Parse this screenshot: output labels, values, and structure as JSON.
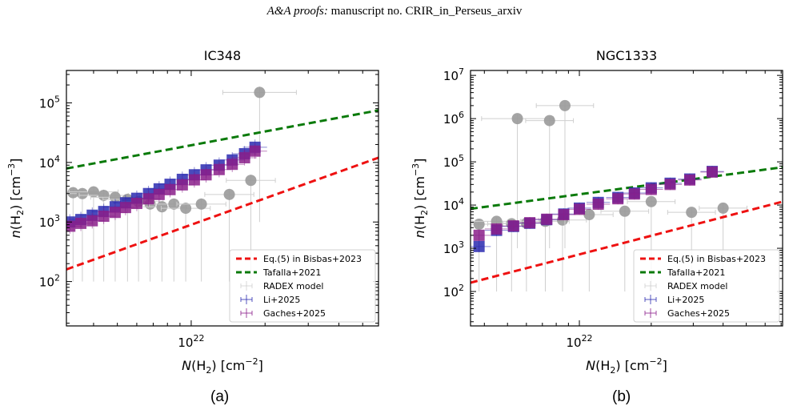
{
  "header": {
    "journal": "A&A proofs:",
    "rest": " manuscript no. CRIR_in_Perseus_arxiv"
  },
  "colors": {
    "red": "#ee1111",
    "green": "#0a7a0a",
    "radex": "#9a9a9a",
    "radex_err": "#cfcfcf",
    "li": "#2a2ab0",
    "gaches": "#8a1e8a"
  },
  "legend_items": [
    "Eq.(5) in Bisbas+2023",
    "Tafalla+2021",
    "RADEX model",
    "Li+2025",
    "Gaches+2025"
  ],
  "chart_data": [
    {
      "type": "scatter",
      "title": "IC348",
      "caption": "(a)",
      "xlabel": "N(H2) [cm−2]",
      "ylabel": "n(H2) [cm−3]",
      "xscale": "log",
      "yscale": "log",
      "xlim": [
        3.1e+21,
        5.8e+22
      ],
      "ylim": [
        18,
        350000.0
      ],
      "xticks": [
        {
          "v": 1e+22,
          "label": "10^22"
        }
      ],
      "yticks": [
        {
          "v": 100,
          "label": "10^2"
        },
        {
          "v": 1000,
          "label": "10^3"
        },
        {
          "v": 10000,
          "label": "10^4"
        },
        {
          "v": 100000,
          "label": "10^5"
        }
      ],
      "legend": "lower-right",
      "grid": false,
      "lines": [
        {
          "name": "Eq.(5) in Bisbas+2023",
          "color": "red",
          "x": [
            3.1e+21,
            5.8e+22
          ],
          "y": [
            160,
            12000
          ]
        },
        {
          "name": "Tafalla+2021",
          "color": "green",
          "x": [
            3.1e+21,
            5.8e+22
          ],
          "y": [
            7900,
            75000
          ]
        }
      ],
      "radex": [
        {
          "x": 3.3e+21,
          "y": 3100,
          "xe": 0.1,
          "ylo": 3000
        },
        {
          "x": 3.6e+21,
          "y": 3000,
          "xe": 0.1,
          "ylo": 2900
        },
        {
          "x": 4e+21,
          "y": 3200,
          "xe": 0.1,
          "ylo": 3100
        },
        {
          "x": 4.4e+21,
          "y": 2800,
          "xe": 0.1,
          "ylo": 2700
        },
        {
          "x": 4.9e+21,
          "y": 2600,
          "xe": 0.1,
          "ylo": 2500
        },
        {
          "x": 5.5e+21,
          "y": 2400,
          "xe": 0.1,
          "ylo": 2300
        },
        {
          "x": 6.1e+21,
          "y": 2200,
          "xe": 0.1,
          "ylo": 2100
        },
        {
          "x": 6.8e+21,
          "y": 2000,
          "xe": 0.1,
          "ylo": 1900
        },
        {
          "x": 7.6e+21,
          "y": 1800,
          "xe": 0.1,
          "ylo": 1700
        },
        {
          "x": 8.5e+21,
          "y": 2000,
          "xe": 0.1,
          "ylo": 1900
        },
        {
          "x": 9.5e+21,
          "y": 1700,
          "xe": 0.1,
          "ylo": 1600
        },
        {
          "x": 1.1e+22,
          "y": 2000,
          "xe": 0.1,
          "ylo": 1900
        },
        {
          "x": 1.43e+22,
          "y": 2900,
          "xe": 0.1,
          "ylo": 2800
        },
        {
          "x": 1.75e+22,
          "y": 5000,
          "xe": 0.1,
          "ylo": 4900
        },
        {
          "x": 1.9e+22,
          "y": 150000,
          "xe": 0.15,
          "ylo": 149000
        }
      ],
      "li": [
        {
          "x": 3.2e+21,
          "y": 1000
        },
        {
          "x": 3.55e+21,
          "y": 1100
        },
        {
          "x": 3.95e+21,
          "y": 1300
        },
        {
          "x": 4.4e+21,
          "y": 1500
        },
        {
          "x": 4.9e+21,
          "y": 1800
        },
        {
          "x": 5.4e+21,
          "y": 2100
        },
        {
          "x": 6e+21,
          "y": 2500
        },
        {
          "x": 6.7e+21,
          "y": 3000
        },
        {
          "x": 7.4e+21,
          "y": 3600
        },
        {
          "x": 8.2e+21,
          "y": 4300
        },
        {
          "x": 9.2e+21,
          "y": 5200
        },
        {
          "x": 1.03e+22,
          "y": 6200
        },
        {
          "x": 1.15e+22,
          "y": 7500
        },
        {
          "x": 1.3e+22,
          "y": 9000
        },
        {
          "x": 1.47e+22,
          "y": 11000
        },
        {
          "x": 1.65e+22,
          "y": 14000
        },
        {
          "x": 1.82e+22,
          "y": 18000
        }
      ],
      "gaches": [
        {
          "x": 3.2e+21,
          "y": 850
        },
        {
          "x": 3.55e+21,
          "y": 950
        },
        {
          "x": 3.95e+21,
          "y": 1050
        },
        {
          "x": 4.4e+21,
          "y": 1250
        },
        {
          "x": 4.9e+21,
          "y": 1450
        },
        {
          "x": 5.4e+21,
          "y": 1750
        },
        {
          "x": 6e+21,
          "y": 2050
        },
        {
          "x": 6.7e+21,
          "y": 2450
        },
        {
          "x": 7.4e+21,
          "y": 2900
        },
        {
          "x": 8.2e+21,
          "y": 3500
        },
        {
          "x": 9.2e+21,
          "y": 4200
        },
        {
          "x": 1.03e+22,
          "y": 5100
        },
        {
          "x": 1.15e+22,
          "y": 6200
        },
        {
          "x": 1.3e+22,
          "y": 7600
        },
        {
          "x": 1.47e+22,
          "y": 9300
        },
        {
          "x": 1.65e+22,
          "y": 12000
        },
        {
          "x": 1.82e+22,
          "y": 15500
        }
      ]
    },
    {
      "type": "scatter",
      "title": "NGC1333",
      "caption": "(b)",
      "xlabel": "N(H2) [cm−2]",
      "ylabel": "n(H2) [cm−3]",
      "xscale": "log",
      "yscale": "log",
      "xlim": [
        3.5e+21,
        7.1e+22
      ],
      "ylim": [
        16,
        13000000.0
      ],
      "xticks": [
        {
          "v": 1e+22,
          "label": "10^22"
        }
      ],
      "yticks": [
        {
          "v": 100,
          "label": "10^2"
        },
        {
          "v": 1000,
          "label": "10^3"
        },
        {
          "v": 10000,
          "label": "10^4"
        },
        {
          "v": 100000,
          "label": "10^5"
        },
        {
          "v": 1000000,
          "label": "10^6"
        },
        {
          "v": 10000000,
          "label": "10^7"
        }
      ],
      "legend": "lower-right",
      "grid": false,
      "lines": [
        {
          "name": "Eq.(5) in Bisbas+2023",
          "color": "red",
          "x": [
            3.5e+21,
            7.1e+22
          ],
          "y": [
            160,
            12000
          ]
        },
        {
          "name": "Tafalla+2021",
          "color": "green",
          "x": [
            3.5e+21,
            7.1e+22
          ],
          "y": [
            8200,
            75000
          ]
        }
      ],
      "radex": [
        {
          "x": 3.8e+21,
          "y": 3600,
          "xe": 0.1,
          "ylo": 3500
        },
        {
          "x": 4.5e+21,
          "y": 4200,
          "xe": 0.1,
          "ylo": 4100
        },
        {
          "x": 5.2e+21,
          "y": 3700,
          "xe": 0.1,
          "ylo": 3600
        },
        {
          "x": 6e+21,
          "y": 3800,
          "xe": 0.1,
          "ylo": 3700
        },
        {
          "x": 7.2e+21,
          "y": 4200,
          "xe": 0.1,
          "ylo": 4100
        },
        {
          "x": 8.5e+21,
          "y": 4500,
          "xe": 0.1,
          "ylo": 4400
        },
        {
          "x": 1.1e+22,
          "y": 6000,
          "xe": 0.1,
          "ylo": 5900
        },
        {
          "x": 1.55e+22,
          "y": 7200,
          "xe": 0.1,
          "ylo": 7100
        },
        {
          "x": 2e+22,
          "y": 12000,
          "xe": 0.1,
          "ylo": 11900
        },
        {
          "x": 2.95e+22,
          "y": 6800,
          "xe": 0.1,
          "ylo": 6700
        },
        {
          "x": 4e+22,
          "y": 8500,
          "xe": 0.1,
          "ylo": 8400
        },
        {
          "x": 5.5e+21,
          "y": 1000000,
          "xe": 0.15,
          "ylo": 999000
        },
        {
          "x": 8.7e+21,
          "y": 2000000,
          "xe": 0.12,
          "ylo": 1999000
        },
        {
          "x": 7.5e+21,
          "y": 900000,
          "xe": 0.1,
          "ylo": 899000
        }
      ],
      "li": [
        {
          "x": 3.8e+21,
          "y": 1100
        },
        {
          "x": 4.5e+21,
          "y": 2600
        },
        {
          "x": 5.3e+21,
          "y": 3200
        },
        {
          "x": 6.2e+21,
          "y": 3800
        },
        {
          "x": 7.3e+21,
          "y": 4600
        },
        {
          "x": 8.6e+21,
          "y": 6200
        },
        {
          "x": 1e+22,
          "y": 8500
        },
        {
          "x": 1.2e+22,
          "y": 11500
        },
        {
          "x": 1.45e+22,
          "y": 15000
        },
        {
          "x": 1.7e+22,
          "y": 19000
        },
        {
          "x": 2e+22,
          "y": 25000
        },
        {
          "x": 2.4e+22,
          "y": 32000
        },
        {
          "x": 2.9e+22,
          "y": 40000
        },
        {
          "x": 3.6e+22,
          "y": 60000
        }
      ],
      "gaches": [
        {
          "x": 3.8e+21,
          "y": 2000
        },
        {
          "x": 4.5e+21,
          "y": 2800
        },
        {
          "x": 5.3e+21,
          "y": 3300
        },
        {
          "x": 6.2e+21,
          "y": 3900
        },
        {
          "x": 7.3e+21,
          "y": 4700
        },
        {
          "x": 8.6e+21,
          "y": 6000
        },
        {
          "x": 1e+22,
          "y": 8000
        },
        {
          "x": 1.2e+22,
          "y": 10500
        },
        {
          "x": 1.45e+22,
          "y": 14000
        },
        {
          "x": 1.7e+22,
          "y": 18000
        },
        {
          "x": 2e+22,
          "y": 23000
        },
        {
          "x": 2.4e+22,
          "y": 30000
        },
        {
          "x": 2.9e+22,
          "y": 38000
        },
        {
          "x": 3.6e+22,
          "y": 58000
        }
      ]
    }
  ]
}
